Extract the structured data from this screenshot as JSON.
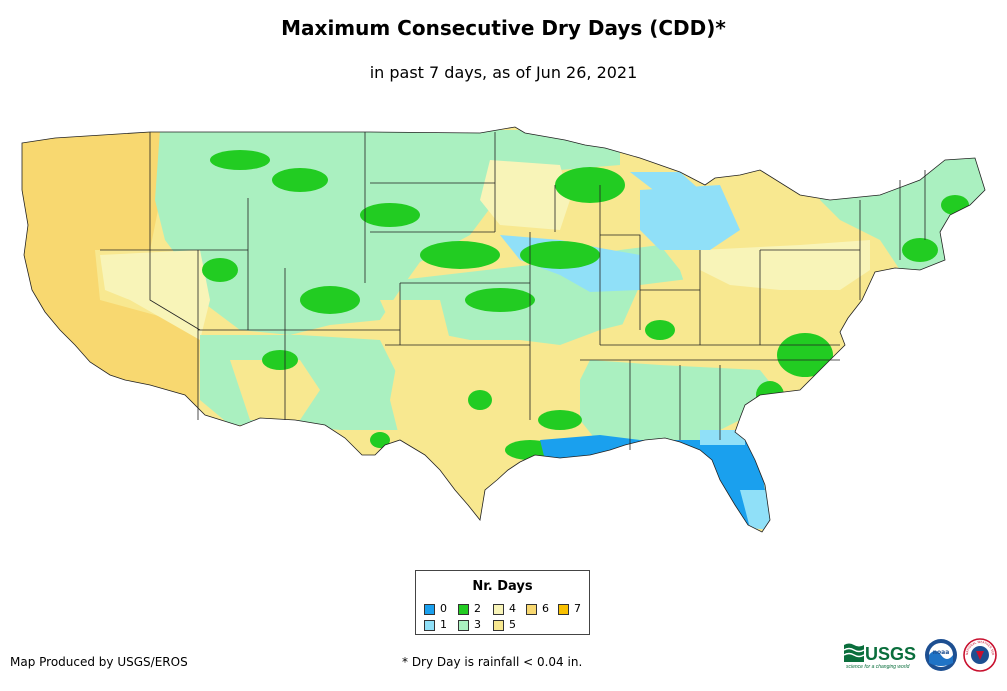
{
  "title": "Maximum Consecutive Dry Days (CDD)*",
  "subtitle": "in past 7 days, as of Jun 26, 2021",
  "legend": {
    "title": "Nr. Days",
    "items": [
      {
        "label": "0",
        "color": "#1aa0ee"
      },
      {
        "label": "1",
        "color": "#90e0f8"
      },
      {
        "label": "2",
        "color": "#22cc22"
      },
      {
        "label": "3",
        "color": "#aaf0c0"
      },
      {
        "label": "4",
        "color": "#f8f4b8"
      },
      {
        "label": "5",
        "color": "#f8e890"
      },
      {
        "label": "6",
        "color": "#f8d870"
      },
      {
        "label": "7",
        "color": "#f8c000"
      }
    ]
  },
  "producer": "Map Produced by USGS/EROS",
  "footnote": "* Dry Day is rainfall < 0.04 in.",
  "logos": {
    "usgs_text": "USGS",
    "usgs_tagline": "science for a changing world",
    "noaa_text": "noaa",
    "nws_text": "NATIONAL WEATHER SERVICE"
  }
}
